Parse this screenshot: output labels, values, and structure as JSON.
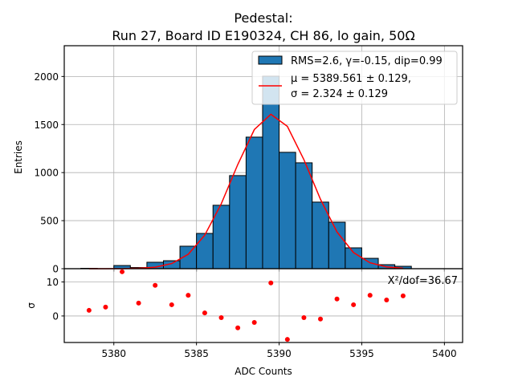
{
  "chart_data": [
    {
      "panel": "histogram",
      "type": "bar",
      "title_line1": "Pedestal:",
      "title_line2": "Run 27, Board ID E190324, CH 86, lo gain, 50Ω",
      "xlabel": "",
      "ylabel": "Entries",
      "xlim": [
        5377.0,
        5401.1
      ],
      "ylim": [
        0,
        2320
      ],
      "yticks": [
        0,
        500,
        1000,
        1500,
        2000
      ],
      "xticks": [
        5380,
        5385,
        5390,
        5395,
        5400
      ],
      "grid": true,
      "bin_edges": [
        5378,
        5379,
        5380,
        5381,
        5382,
        5383,
        5384,
        5385,
        5386,
        5387,
        5388,
        5389,
        5390,
        5391,
        5392,
        5393,
        5394,
        5395,
        5396,
        5397,
        5398
      ],
      "values": [
        4,
        0,
        33,
        12,
        67,
        83,
        234,
        367,
        660,
        969,
        1369,
        2003,
        1211,
        1102,
        693,
        484,
        217,
        108,
        42,
        25
      ],
      "bar_color": "#1f77b4",
      "fit": {
        "type": "gaussian",
        "mu": 5389.561,
        "sigma": 2.324,
        "amplitude": 1607,
        "x_range": [
          5378.5,
          5397.5
        ],
        "color": "#ff0000"
      },
      "legend": {
        "placement": "upper-right",
        "entries": [
          {
            "kind": "patch",
            "label": "RMS=2.6, γ=-0.15, dip=0.99"
          },
          {
            "kind": "line",
            "label_line1": "μ = 5389.561 ± 0.129,",
            "label_line2": "σ = 2.324 ± 0.129"
          }
        ]
      }
    },
    {
      "panel": "residuals",
      "type": "scatter",
      "xlabel": "ADC Counts",
      "ylabel": "σ",
      "xlim": [
        5377.0,
        5401.1
      ],
      "ylim": [
        -7.8,
        13.9
      ],
      "yticks": [
        0,
        10
      ],
      "xticks": [
        5380,
        5385,
        5390,
        5395,
        5400
      ],
      "xtick_labels": [
        "5380",
        "5385",
        "5390",
        "5395",
        "5400"
      ],
      "grid": true,
      "x": [
        5378.5,
        5379.5,
        5380.5,
        5381.5,
        5382.5,
        5383.5,
        5384.5,
        5385.5,
        5386.5,
        5387.5,
        5388.5,
        5389.5,
        5390.5,
        5391.5,
        5392.5,
        5393.5,
        5394.5,
        5395.5,
        5396.5,
        5397.5
      ],
      "y": [
        1.65,
        2.6,
        13.0,
        3.8,
        9.0,
        3.3,
        6.1,
        0.9,
        -0.5,
        -3.5,
        -1.9,
        9.7,
        -6.9,
        -0.5,
        -0.9,
        5.0,
        3.3,
        6.1,
        4.7,
        5.9
      ],
      "marker_color": "#ff0000",
      "annotation": "X²/dof=36.67"
    }
  ]
}
